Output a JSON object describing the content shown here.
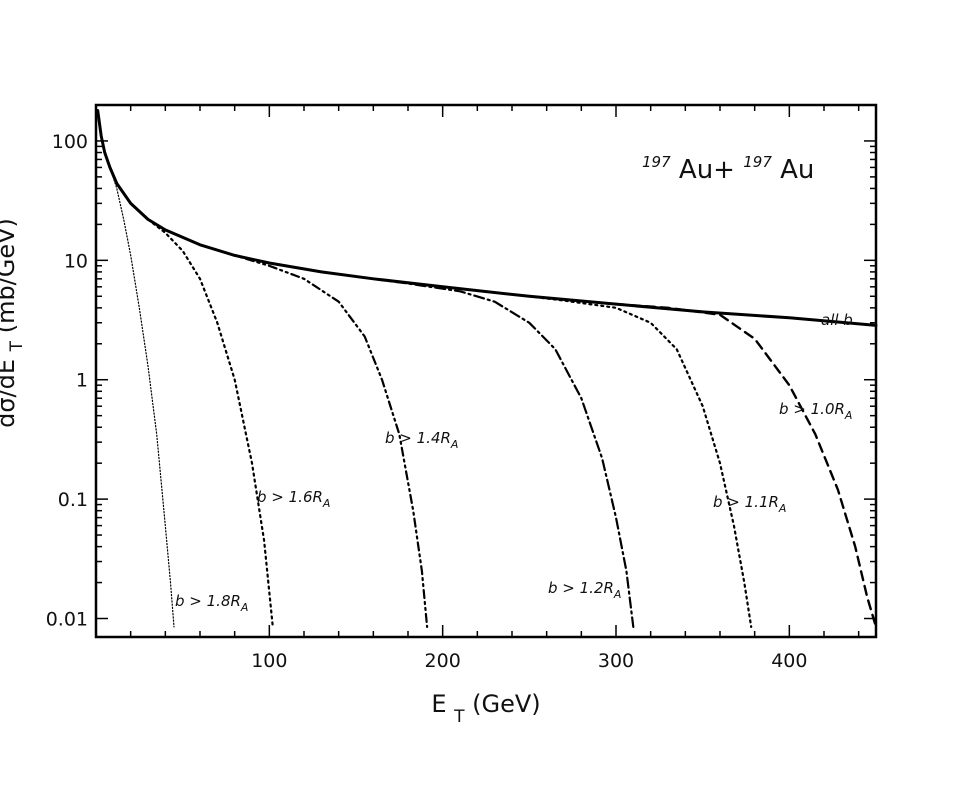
{
  "chart_data": {
    "type": "line",
    "title_parts": {
      "sup1": "197",
      "main1": "Au+ ",
      "sup2": "197",
      "main2": "Au"
    },
    "xlabel": {
      "main": "E",
      "sub": "T",
      "rest": " (GeV)"
    },
    "ylabel": {
      "pre": "dσ/dE",
      "sub": "T",
      "post": " (mb/GeV)"
    },
    "xlim": [
      0,
      450
    ],
    "ylim": [
      0.007,
      200
    ],
    "yscale": "log",
    "x_ticks": [
      100,
      200,
      300,
      400
    ],
    "x_tick_labels": [
      "100",
      "200",
      "300",
      "400"
    ],
    "y_ticks": [
      0.01,
      0.1,
      1,
      10,
      100
    ],
    "y_tick_labels": [
      "0.01",
      "0.1",
      "1",
      "10",
      "100"
    ],
    "grid": false,
    "series": [
      {
        "label": {
          "main": "all b"
        },
        "dash": "solid",
        "points": [
          [
            1,
            180
          ],
          [
            3,
            110
          ],
          [
            5,
            80
          ],
          [
            8,
            60
          ],
          [
            12,
            44
          ],
          [
            20,
            30
          ],
          [
            30,
            22
          ],
          [
            40,
            18
          ],
          [
            60,
            13.5
          ],
          [
            80,
            11
          ],
          [
            100,
            9.5
          ],
          [
            130,
            8
          ],
          [
            160,
            7
          ],
          [
            200,
            6
          ],
          [
            250,
            5
          ],
          [
            300,
            4.3
          ],
          [
            350,
            3.7
          ],
          [
            400,
            3.3
          ],
          [
            450,
            2.85
          ]
        ]
      },
      {
        "label": {
          "main": "b > 1.8R",
          "sub": "A"
        },
        "dash": "fine-dotted",
        "points": [
          [
            5,
            80
          ],
          [
            8,
            60
          ],
          [
            12,
            40
          ],
          [
            16,
            22
          ],
          [
            20,
            11
          ],
          [
            25,
            4
          ],
          [
            30,
            1.3
          ],
          [
            35,
            0.35
          ],
          [
            40,
            0.06
          ],
          [
            43,
            0.02
          ],
          [
            45,
            0.0085
          ]
        ]
      },
      {
        "label": {
          "main": "b > 1.6R",
          "sub": "A"
        },
        "dash": "dotted",
        "points": [
          [
            20,
            30
          ],
          [
            30,
            22
          ],
          [
            40,
            17
          ],
          [
            50,
            12
          ],
          [
            60,
            7
          ],
          [
            70,
            3
          ],
          [
            80,
            1
          ],
          [
            90,
            0.2
          ],
          [
            97,
            0.045
          ],
          [
            102,
            0.0085
          ]
        ]
      },
      {
        "label": {
          "main": "b > 1.4R",
          "sub": "A"
        },
        "dash": "dash-dot-dot",
        "points": [
          [
            60,
            13.5
          ],
          [
            80,
            11
          ],
          [
            100,
            9
          ],
          [
            120,
            7
          ],
          [
            140,
            4.5
          ],
          [
            155,
            2.3
          ],
          [
            165,
            1
          ],
          [
            175,
            0.35
          ],
          [
            183,
            0.08
          ],
          [
            188,
            0.025
          ],
          [
            191,
            0.0085
          ]
        ]
      },
      {
        "label": {
          "main": "b > 1.2R",
          "sub": "A"
        },
        "dash": "dash-dot",
        "points": [
          [
            150,
            7.3
          ],
          [
            180,
            6.4
          ],
          [
            210,
            5.5
          ],
          [
            230,
            4.5
          ],
          [
            250,
            3
          ],
          [
            265,
            1.8
          ],
          [
            280,
            0.7
          ],
          [
            292,
            0.22
          ],
          [
            300,
            0.07
          ],
          [
            306,
            0.025
          ],
          [
            310,
            0.0085
          ]
        ]
      },
      {
        "label": {
          "main": "b > 1.1R",
          "sub": "A"
        },
        "dash": "dotted",
        "points": [
          [
            240,
            5.2
          ],
          [
            270,
            4.6
          ],
          [
            300,
            4
          ],
          [
            320,
            3
          ],
          [
            335,
            1.8
          ],
          [
            350,
            0.6
          ],
          [
            360,
            0.2
          ],
          [
            368,
            0.06
          ],
          [
            374,
            0.02
          ],
          [
            378,
            0.0085
          ]
        ]
      },
      {
        "label": {
          "main": "b > 1.0R",
          "sub": "A"
        },
        "dash": "dashed",
        "points": [
          [
            300,
            4.3
          ],
          [
            330,
            4
          ],
          [
            360,
            3.5
          ],
          [
            380,
            2.2
          ],
          [
            400,
            0.9
          ],
          [
            415,
            0.35
          ],
          [
            428,
            0.12
          ],
          [
            438,
            0.04
          ],
          [
            445,
            0.015
          ],
          [
            450,
            0.0085
          ]
        ]
      }
    ]
  }
}
